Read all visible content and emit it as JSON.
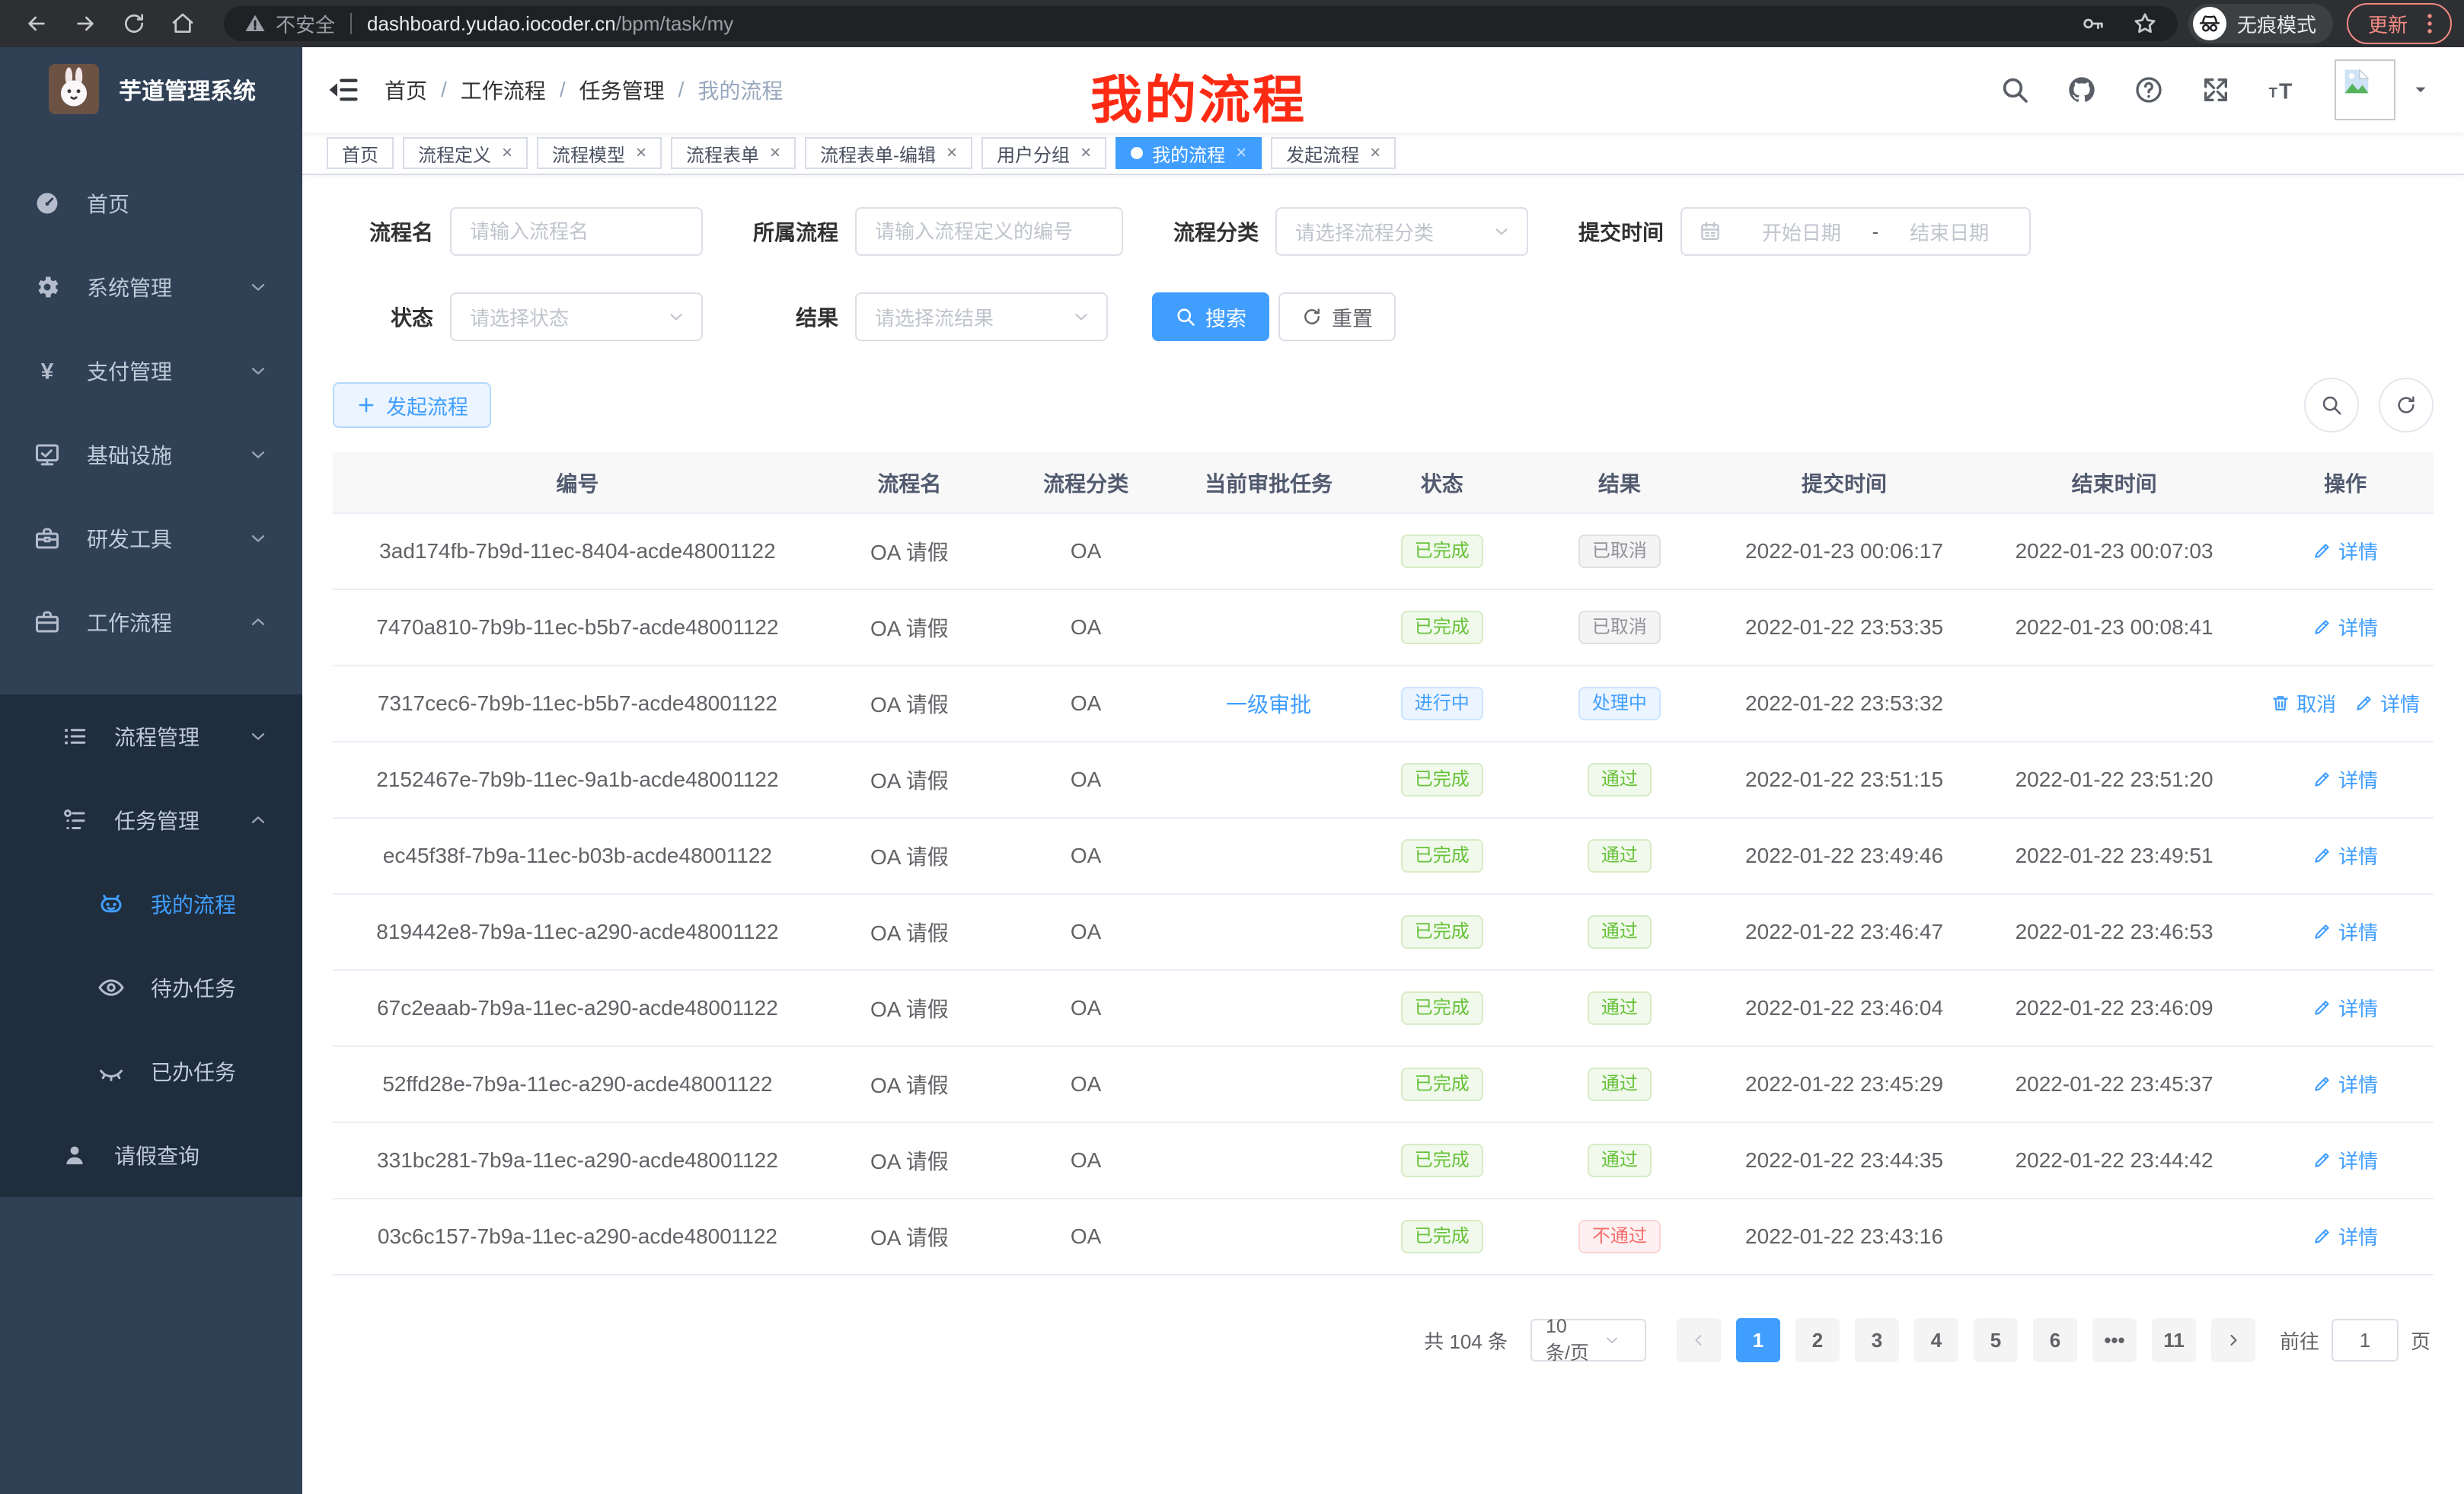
{
  "browser": {
    "security_label": "不安全",
    "url_host": "dashboard.yudao.iocoder.cn",
    "url_path": "/bpm/task/my",
    "incognito_label": "无痕模式",
    "update_label": "更新"
  },
  "colors": {
    "primary": "#409eff",
    "success": "#67c23a",
    "info": "#909399",
    "danger": "#f56c6c",
    "sidebar_bg": "#304156",
    "submenu_bg": "#1f2d3d",
    "annotation_red": "#fe2b14",
    "update_coral": "#f28b82",
    "active_tab_bg": "#409eff"
  },
  "sidebar": {
    "app_title": "芋道管理系统",
    "items": [
      {
        "key": "home",
        "label": "首页",
        "icon": "dashboard-icon",
        "level": 1
      },
      {
        "key": "system",
        "label": "系统管理",
        "icon": "gear-icon",
        "level": 1,
        "chevron": "down"
      },
      {
        "key": "payment",
        "label": "支付管理",
        "icon": "yen-icon",
        "level": 1,
        "chevron": "down"
      },
      {
        "key": "infra",
        "label": "基础设施",
        "icon": "monitor-icon",
        "level": 1,
        "chevron": "down"
      },
      {
        "key": "devtools",
        "label": "研发工具",
        "icon": "toolbox-icon",
        "level": 1,
        "chevron": "down"
      },
      {
        "key": "workflow",
        "label": "工作流程",
        "icon": "briefcase-icon",
        "level": 1,
        "chevron": "up"
      },
      {
        "key": "process-mgmt",
        "label": "流程管理",
        "icon": "list-icon",
        "level": 2,
        "chevron": "down",
        "sub": true
      },
      {
        "key": "task-mgmt",
        "label": "任务管理",
        "icon": "flow-icon",
        "level": 2,
        "chevron": "up",
        "sub": true
      },
      {
        "key": "my-process",
        "label": "我的流程",
        "icon": "robot-icon",
        "level": 3,
        "active": true,
        "sub": true
      },
      {
        "key": "todo-task",
        "label": "待办任务",
        "icon": "eye-open-icon",
        "level": 3,
        "sub": true
      },
      {
        "key": "done-task",
        "label": "已办任务",
        "icon": "eye-closed-icon",
        "level": 3,
        "sub": true
      },
      {
        "key": "leave-query",
        "label": "请假查询",
        "icon": "user-icon",
        "level": 2,
        "sub": true
      }
    ]
  },
  "header": {
    "breadcrumb": [
      "首页",
      "工作流程",
      "任务管理",
      "我的流程"
    ],
    "annotation": "我的流程"
  },
  "tabs": [
    {
      "label": "首页",
      "closable": false
    },
    {
      "label": "流程定义",
      "closable": true
    },
    {
      "label": "流程模型",
      "closable": true
    },
    {
      "label": "流程表单",
      "closable": true
    },
    {
      "label": "流程表单-编辑",
      "closable": true
    },
    {
      "label": "用户分组",
      "closable": true
    },
    {
      "label": "我的流程",
      "closable": true,
      "active": true
    },
    {
      "label": "发起流程",
      "closable": true
    }
  ],
  "filters": {
    "name": {
      "label": "流程名",
      "placeholder": "请输入流程名"
    },
    "process": {
      "label": "所属流程",
      "placeholder": "请输入流程定义的编号"
    },
    "category": {
      "label": "流程分类",
      "placeholder": "请选择流程分类"
    },
    "time": {
      "label": "提交时间",
      "start_placeholder": "开始日期",
      "separator": "-",
      "end_placeholder": "结束日期"
    },
    "status": {
      "label": "状态",
      "placeholder": "请选择状态"
    },
    "result": {
      "label": "结果",
      "placeholder": "请选择流结果"
    },
    "search_label": "搜索",
    "reset_label": "重置"
  },
  "toolbar": {
    "create_label": "发起流程"
  },
  "table": {
    "columns": [
      "编号",
      "流程名",
      "流程分类",
      "当前审批任务",
      "状态",
      "结果",
      "提交时间",
      "结束时间",
      "操作"
    ],
    "action_labels": {
      "cancel": "取消",
      "detail": "详情"
    },
    "rows": [
      {
        "id": "3ad174fb-7b9d-11ec-8404-acde48001122",
        "name": "OA 请假",
        "category": "OA",
        "current_task": "",
        "status": {
          "text": "已完成",
          "type": "success"
        },
        "result": {
          "text": "已取消",
          "type": "info"
        },
        "submit_time": "2022-01-23 00:06:17",
        "end_time": "2022-01-23 00:07:03",
        "actions": [
          "detail"
        ]
      },
      {
        "id": "7470a810-7b9b-11ec-b5b7-acde48001122",
        "name": "OA 请假",
        "category": "OA",
        "current_task": "",
        "status": {
          "text": "已完成",
          "type": "success"
        },
        "result": {
          "text": "已取消",
          "type": "info"
        },
        "submit_time": "2022-01-22 23:53:35",
        "end_time": "2022-01-23 00:08:41",
        "actions": [
          "detail"
        ]
      },
      {
        "id": "7317cec6-7b9b-11ec-b5b7-acde48001122",
        "name": "OA 请假",
        "category": "OA",
        "current_task": "一级审批",
        "status": {
          "text": "进行中",
          "type": "primary"
        },
        "result": {
          "text": "处理中",
          "type": "primary"
        },
        "submit_time": "2022-01-22 23:53:32",
        "end_time": "",
        "actions": [
          "cancel",
          "detail"
        ]
      },
      {
        "id": "2152467e-7b9b-11ec-9a1b-acde48001122",
        "name": "OA 请假",
        "category": "OA",
        "current_task": "",
        "status": {
          "text": "已完成",
          "type": "success"
        },
        "result": {
          "text": "通过",
          "type": "success"
        },
        "submit_time": "2022-01-22 23:51:15",
        "end_time": "2022-01-22 23:51:20",
        "actions": [
          "detail"
        ]
      },
      {
        "id": "ec45f38f-7b9a-11ec-b03b-acde48001122",
        "name": "OA 请假",
        "category": "OA",
        "current_task": "",
        "status": {
          "text": "已完成",
          "type": "success"
        },
        "result": {
          "text": "通过",
          "type": "success"
        },
        "submit_time": "2022-01-22 23:49:46",
        "end_time": "2022-01-22 23:49:51",
        "actions": [
          "detail"
        ]
      },
      {
        "id": "819442e8-7b9a-11ec-a290-acde48001122",
        "name": "OA 请假",
        "category": "OA",
        "current_task": "",
        "status": {
          "text": "已完成",
          "type": "success"
        },
        "result": {
          "text": "通过",
          "type": "success"
        },
        "submit_time": "2022-01-22 23:46:47",
        "end_time": "2022-01-22 23:46:53",
        "actions": [
          "detail"
        ]
      },
      {
        "id": "67c2eaab-7b9a-11ec-a290-acde48001122",
        "name": "OA 请假",
        "category": "OA",
        "current_task": "",
        "status": {
          "text": "已完成",
          "type": "success"
        },
        "result": {
          "text": "通过",
          "type": "success"
        },
        "submit_time": "2022-01-22 23:46:04",
        "end_time": "2022-01-22 23:46:09",
        "actions": [
          "detail"
        ]
      },
      {
        "id": "52ffd28e-7b9a-11ec-a290-acde48001122",
        "name": "OA 请假",
        "category": "OA",
        "current_task": "",
        "status": {
          "text": "已完成",
          "type": "success"
        },
        "result": {
          "text": "通过",
          "type": "success"
        },
        "submit_time": "2022-01-22 23:45:29",
        "end_time": "2022-01-22 23:45:37",
        "actions": [
          "detail"
        ]
      },
      {
        "id": "331bc281-7b9a-11ec-a290-acde48001122",
        "name": "OA 请假",
        "category": "OA",
        "current_task": "",
        "status": {
          "text": "已完成",
          "type": "success"
        },
        "result": {
          "text": "通过",
          "type": "success"
        },
        "submit_time": "2022-01-22 23:44:35",
        "end_time": "2022-01-22 23:44:42",
        "actions": [
          "detail"
        ]
      },
      {
        "id": "03c6c157-7b9a-11ec-a290-acde48001122",
        "name": "OA 请假",
        "category": "OA",
        "current_task": "",
        "status": {
          "text": "已完成",
          "type": "success"
        },
        "result": {
          "text": "不通过",
          "type": "danger"
        },
        "submit_time": "2022-01-22 23:43:16",
        "end_time": "",
        "actions": [
          "detail"
        ]
      }
    ]
  },
  "pagination": {
    "total_label": "共 104 条",
    "per_page": "10条/页",
    "pages": [
      "1",
      "2",
      "3",
      "4",
      "5",
      "6",
      "…",
      "11"
    ],
    "active_page": "1",
    "goto_label": "前往",
    "jump_value": "1",
    "page_unit": "页"
  }
}
